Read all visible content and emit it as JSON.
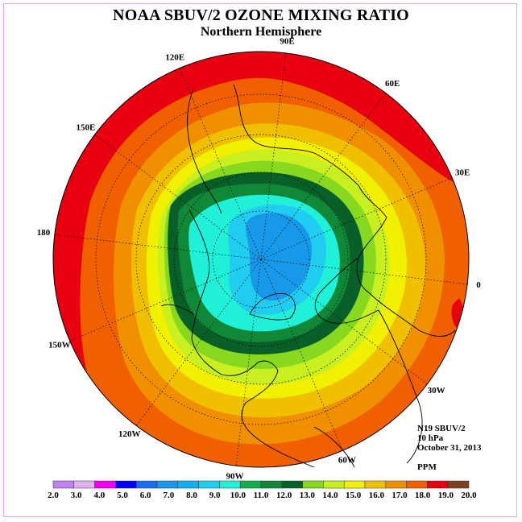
{
  "title": "NOAA SBUV/2 OZONE MIXING RATIO",
  "subtitle": "Northern Hemisphere",
  "longitude_labels": [
    {
      "text": "90E",
      "lon": 90
    },
    {
      "text": "60E",
      "lon": 60
    },
    {
      "text": "30E",
      "lon": 30
    },
    {
      "text": "0",
      "lon": 0
    },
    {
      "text": "30W",
      "lon": -30
    },
    {
      "text": "60W",
      "lon": -60
    },
    {
      "text": "90W",
      "lon": -90
    },
    {
      "text": "120W",
      "lon": -120
    },
    {
      "text": "150W",
      "lon": -150
    },
    {
      "text": "180",
      "lon": 180
    },
    {
      "text": "150E",
      "lon": 150
    },
    {
      "text": "120E",
      "lon": 120
    }
  ],
  "info": {
    "satellite": "N19 SBUV/2",
    "level": "10 hPa",
    "date": "October 31, 2013"
  },
  "units": "PPM",
  "legend": {
    "ticks": [
      "2.0",
      "3.0",
      "4.0",
      "5.0",
      "6.0",
      "7.0",
      "8.0",
      "9.0",
      "10.0",
      "11.0",
      "12.0",
      "13.0",
      "14.0",
      "15.0",
      "16.0",
      "17.0",
      "18.0",
      "19.0",
      "20.0"
    ],
    "colors": [
      "#c080f0",
      "#e0b0f0",
      "#f000f0",
      "#0000ff",
      "#1a6cf0",
      "#1898e8",
      "#10b0f0",
      "#20ccf0",
      "#20f0d8",
      "#10b050",
      "#108838",
      "#086028",
      "#88d820",
      "#c8f020",
      "#f0f000",
      "#f0c000",
      "#f09000",
      "#f06000",
      "#e80010",
      "#804020"
    ]
  },
  "map_data": {
    "projection": "north polar stereographic",
    "parameter": "ozone mixing ratio",
    "regions": [
      {
        "name": "outer rim",
        "value_range": "18.0-19.0 ppm",
        "color": "#e80010"
      },
      {
        "name": "mid latitudes",
        "value_range": "16.0-18.0 ppm",
        "color": "#f06000"
      },
      {
        "name": "polar vortex core",
        "value_range": "6.0-8.0 ppm",
        "color": "#1898e8"
      }
    ]
  }
}
